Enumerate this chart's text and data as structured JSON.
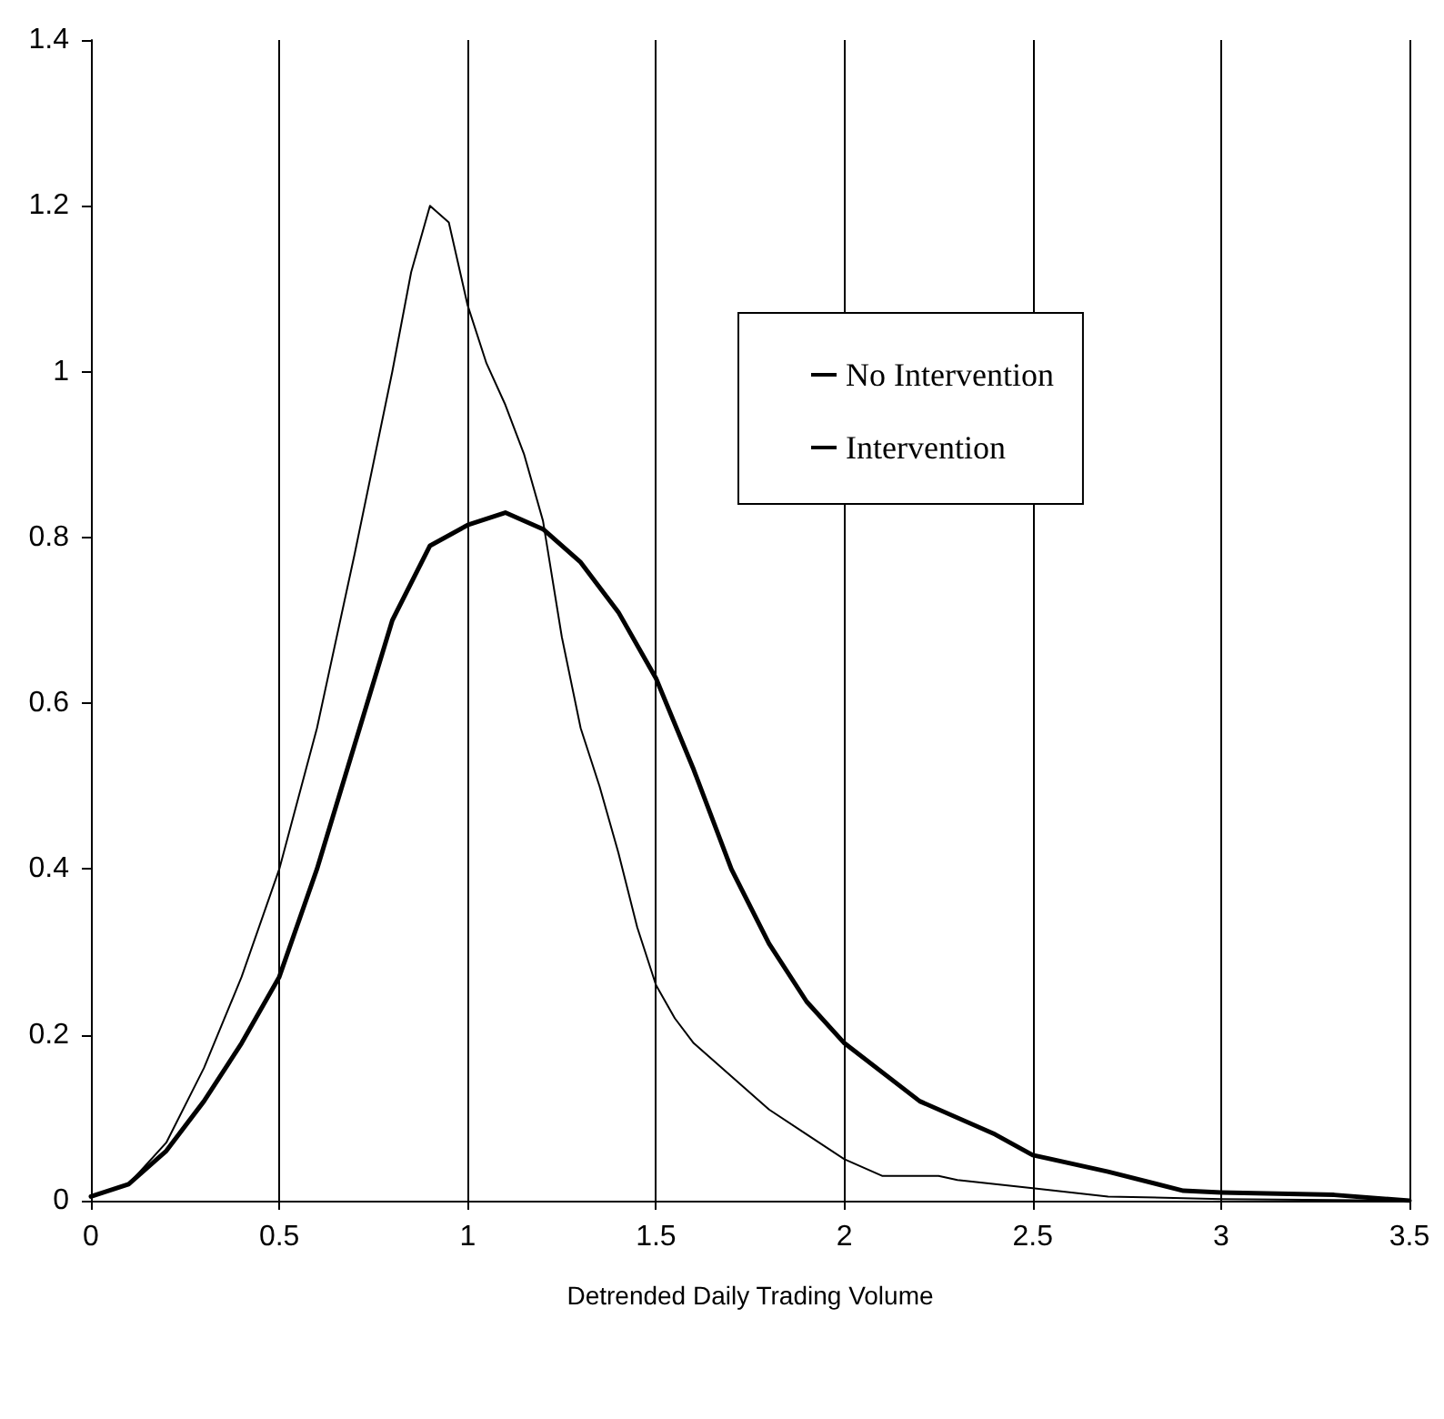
{
  "chart_data": {
    "type": "line",
    "xlabel": "Detrended Daily Trading Volume",
    "xlim": [
      0,
      3.5
    ],
    "xticks": [
      0,
      0.5,
      1,
      1.5,
      2,
      2.5,
      3,
      3.5
    ],
    "ylim": [
      0,
      1.4
    ],
    "yticks": [
      0,
      0.2,
      0.4,
      0.6,
      0.8,
      1,
      1.2,
      1.4
    ],
    "grid": "x",
    "legend": "top right",
    "marker": "none",
    "line_style": "solid",
    "series": [
      {
        "name": "No Intervention",
        "color": "#000000",
        "x": [
          0,
          0.1,
          0.2,
          0.3,
          0.4,
          0.5,
          0.6,
          0.7,
          0.8,
          0.85,
          0.9,
          0.95,
          1.0,
          1.05,
          1.1,
          1.15,
          1.2,
          1.25,
          1.3,
          1.35,
          1.4,
          1.45,
          1.5,
          1.55,
          1.6,
          1.7,
          1.8,
          1.9,
          2.0,
          2.1,
          2.2,
          2.25,
          2.3,
          2.5,
          2.7,
          3.0,
          3.5
        ],
        "values": [
          0.005,
          0.02,
          0.07,
          0.16,
          0.27,
          0.4,
          0.57,
          0.78,
          1.0,
          1.12,
          1.2,
          1.18,
          1.08,
          1.01,
          0.96,
          0.9,
          0.82,
          0.68,
          0.57,
          0.5,
          0.42,
          0.33,
          0.26,
          0.22,
          0.19,
          0.15,
          0.11,
          0.08,
          0.05,
          0.03,
          0.03,
          0.03,
          0.025,
          0.015,
          0.005,
          0.002,
          0
        ]
      },
      {
        "name": "Intervention",
        "color": "#000000",
        "x": [
          0,
          0.1,
          0.2,
          0.3,
          0.4,
          0.5,
          0.6,
          0.7,
          0.8,
          0.9,
          1.0,
          1.1,
          1.2,
          1.3,
          1.4,
          1.5,
          1.6,
          1.7,
          1.8,
          1.9,
          2.0,
          2.2,
          2.4,
          2.5,
          2.7,
          2.9,
          3.0,
          3.3,
          3.5
        ],
        "values": [
          0.005,
          0.02,
          0.06,
          0.12,
          0.19,
          0.27,
          0.4,
          0.55,
          0.7,
          0.79,
          0.815,
          0.83,
          0.81,
          0.77,
          0.71,
          0.63,
          0.52,
          0.4,
          0.31,
          0.24,
          0.19,
          0.12,
          0.08,
          0.055,
          0.035,
          0.012,
          0.01,
          0.007,
          0
        ]
      }
    ]
  }
}
